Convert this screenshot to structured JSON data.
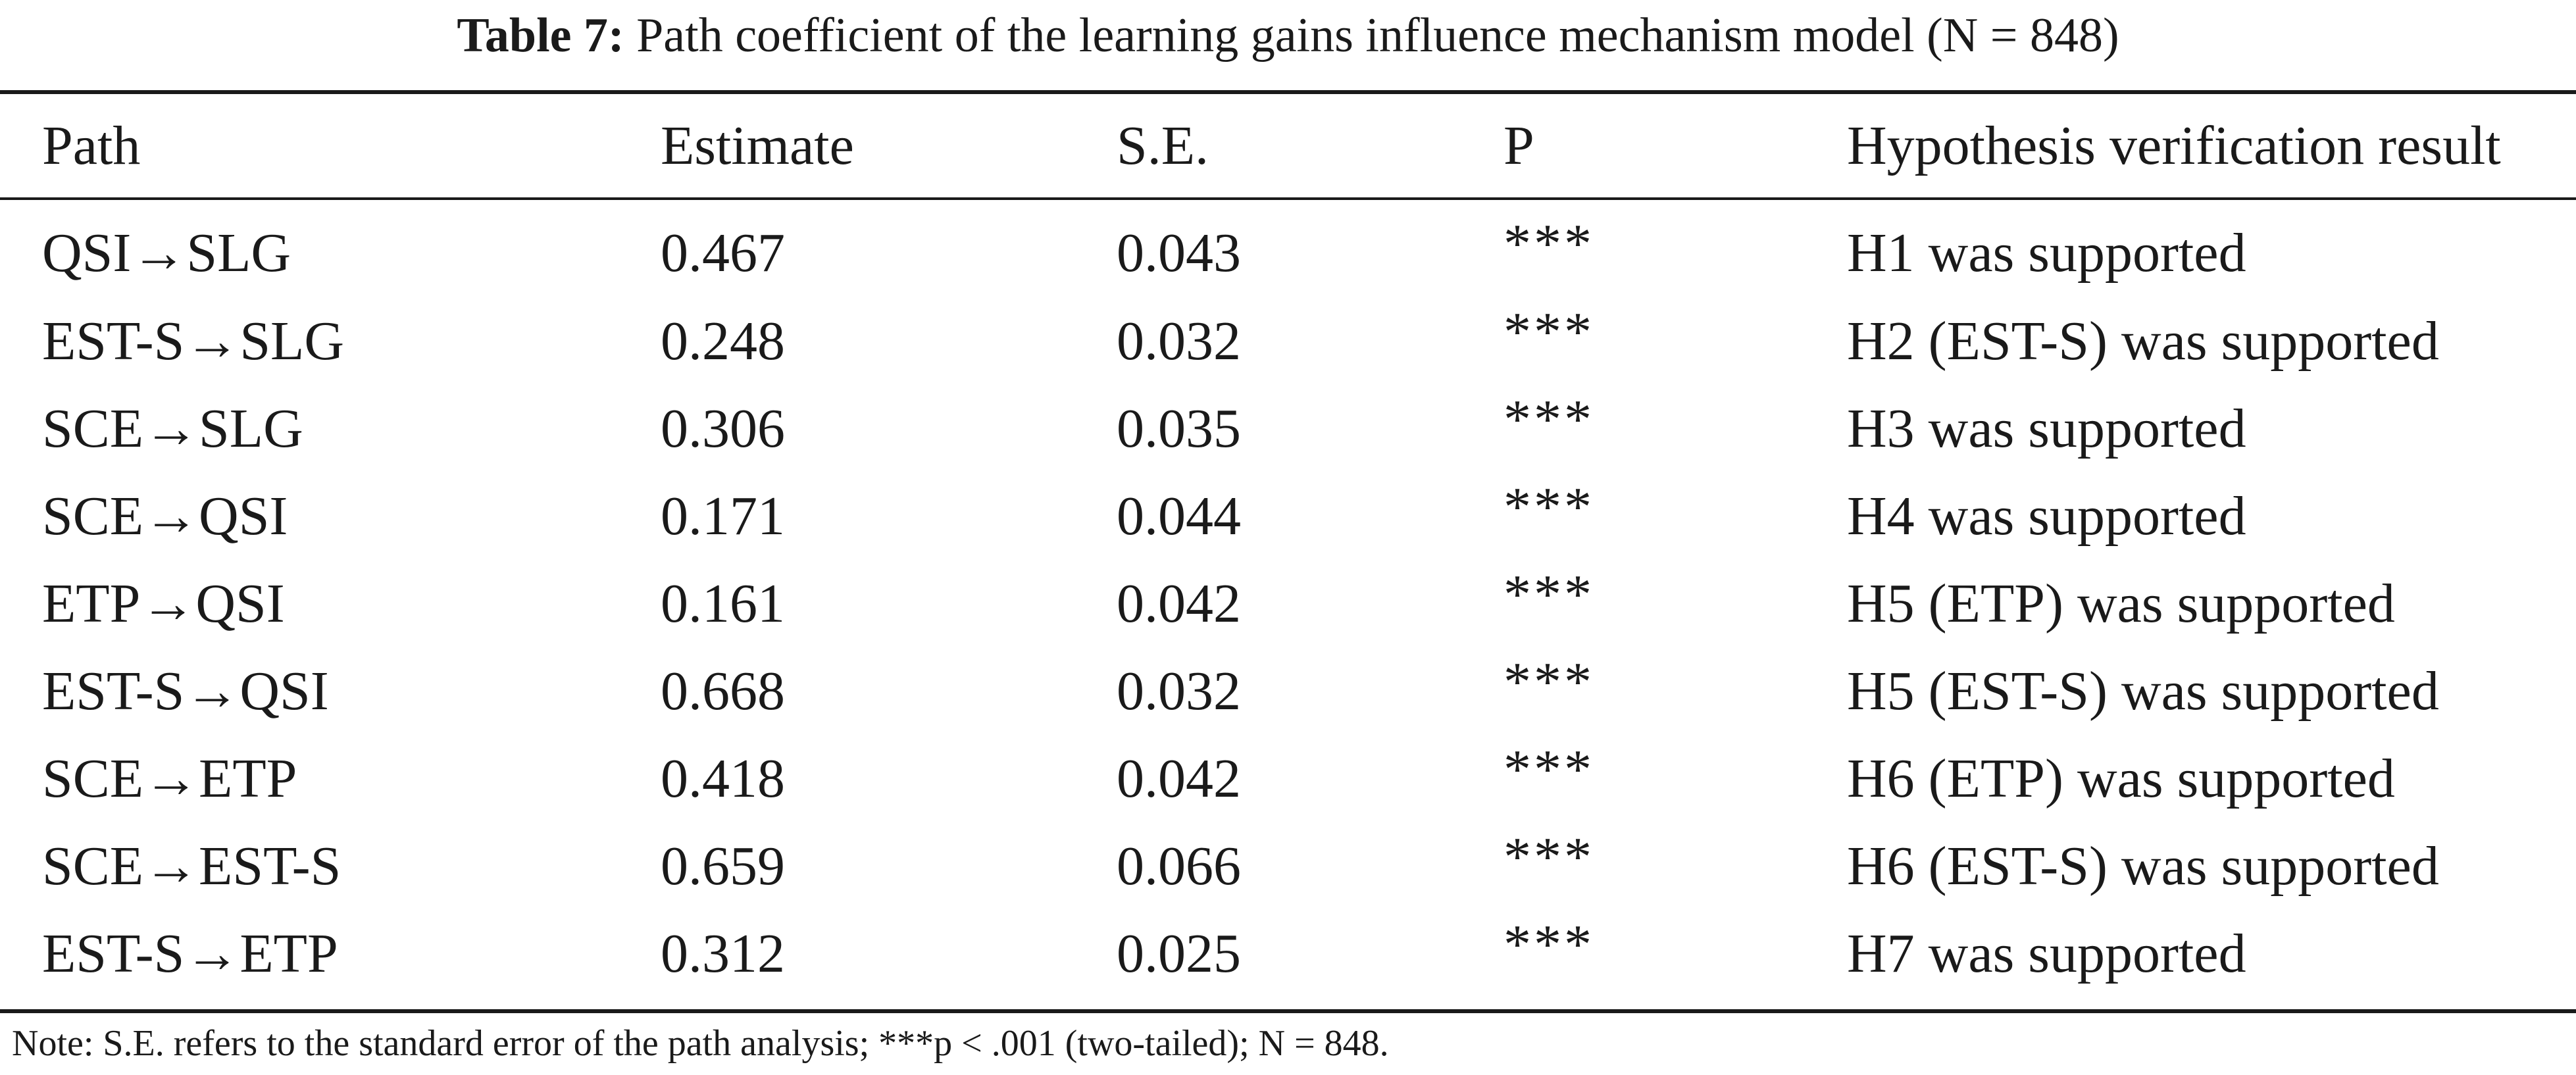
{
  "caption": {
    "label": "Table 7:",
    "text": "Path coefficient of the learning gains influence mechanism model (N = 848)"
  },
  "table": {
    "columns": [
      "Path",
      "Estimate",
      "S.E.",
      "P",
      "Hypothesis verification result"
    ],
    "rows": [
      {
        "path": "QSI→SLG",
        "estimate": "0.467",
        "se": "0.043",
        "p": "***",
        "result": "H1 was supported"
      },
      {
        "path": "EST-S→SLG",
        "estimate": "0.248",
        "se": "0.032",
        "p": "***",
        "result": "H2 (EST-S) was supported"
      },
      {
        "path": "SCE→SLG",
        "estimate": "0.306",
        "se": "0.035",
        "p": "***",
        "result": "H3 was supported"
      },
      {
        "path": "SCE→QSI",
        "estimate": "0.171",
        "se": "0.044",
        "p": "***",
        "result": "H4 was supported"
      },
      {
        "path": "ETP→QSI",
        "estimate": "0.161",
        "se": "0.042",
        "p": "***",
        "result": "H5 (ETP) was supported"
      },
      {
        "path": "EST-S→QSI",
        "estimate": "0.668",
        "se": "0.032",
        "p": "***",
        "result": "H5 (EST-S) was supported"
      },
      {
        "path": "SCE→ETP",
        "estimate": "0.418",
        "se": "0.042",
        "p": "***",
        "result": "H6 (ETP) was supported"
      },
      {
        "path": "SCE→EST-S",
        "estimate": "0.659",
        "se": "0.066",
        "p": "***",
        "result": "H6 (EST-S) was supported"
      },
      {
        "path": "EST-S→ETP",
        "estimate": "0.312",
        "se": "0.025",
        "p": "***",
        "result": "H7 was supported"
      }
    ]
  },
  "note": "Note: S.E. refers to the standard error of the path analysis; ***p < .001 (two-tailed); N = 848."
}
